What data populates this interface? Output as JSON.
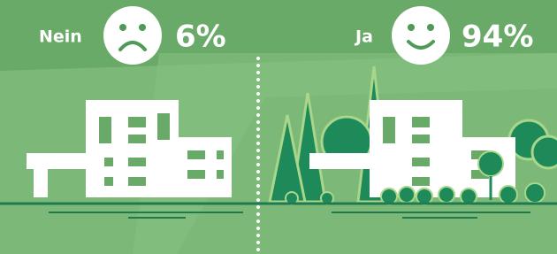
{
  "items": [
    {
      "label": "Nein",
      "value": "6%"
    },
    {
      "label": "Ja",
      "value": "94%"
    }
  ]
}
